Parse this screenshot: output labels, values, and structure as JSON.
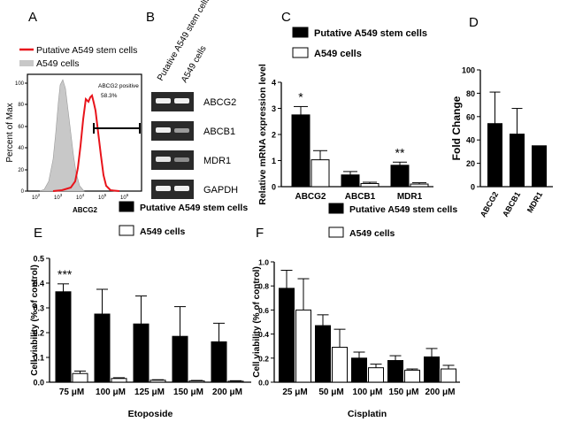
{
  "panels": {
    "A": {
      "letter": "A",
      "legend": [
        "Putative A549 stem cells",
        "A549 cells"
      ],
      "legend_colors": [
        "#e8141b",
        "#c8c8c8"
      ],
      "ylabel": "Percent of Max",
      "xlabel": "ABCG2",
      "y_ticks": [
        "0",
        "20",
        "40",
        "60",
        "80",
        "100"
      ],
      "x_ticks": [
        "10",
        "10",
        "10",
        "10",
        "10",
        "10"
      ],
      "x_tick_exponents": [
        "2",
        "3",
        "4",
        "5",
        "6",
        ""
      ],
      "gate_label": "ABCG2 positive",
      "gate_value": "58.3%"
    },
    "B": {
      "letter": "B",
      "column_labels": [
        "Putative A549 stem cells",
        "A549 cells"
      ],
      "row_labels": [
        "ABCG2",
        "ABCB1",
        "MDR1",
        "GAPDH"
      ]
    },
    "C": {
      "letter": "C"
    },
    "D": {
      "letter": "D"
    },
    "E": {
      "letter": "E"
    },
    "F": {
      "letter": "F"
    }
  },
  "chart_data": [
    {
      "panel": "C",
      "type": "bar",
      "categories": [
        "ABCG2",
        "ABCB1",
        "MDR1"
      ],
      "series": [
        {
          "name": "Putative A549 stem cells",
          "values": [
            2.75,
            0.45,
            0.82
          ],
          "errors": [
            0.32,
            0.13,
            0.12
          ],
          "color": "#000000"
        },
        {
          "name": "A549 cells",
          "values": [
            1.03,
            0.12,
            0.1
          ],
          "errors": [
            0.35,
            0.05,
            0.05
          ],
          "color": "#ffffff"
        }
      ],
      "annotations": [
        "*",
        "",
        "**"
      ],
      "ylabel": "Relative mRNA expression level",
      "ylim": [
        0,
        4
      ],
      "y_ticks": [
        0,
        1,
        2,
        3,
        4
      ]
    },
    {
      "panel": "D",
      "type": "bar",
      "categories": [
        "ABCG2",
        "ABCB1",
        "MDR1"
      ],
      "series": [
        {
          "name": "",
          "values": [
            54,
            45,
            35
          ],
          "errors": [
            27,
            22,
            0
          ],
          "color": "#000000"
        }
      ],
      "ylabel": "Fold Change",
      "ylim": [
        0,
        100
      ],
      "y_ticks": [
        0,
        20,
        40,
        60,
        80,
        100
      ]
    },
    {
      "panel": "E",
      "type": "bar",
      "categories": [
        "75 μM",
        "100 μM",
        "125 μM",
        "150 μM",
        "200 μM"
      ],
      "series": [
        {
          "name": "Putative A549 stem cells",
          "values": [
            0.365,
            0.275,
            0.235,
            0.185,
            0.163
          ],
          "errors": [
            0.032,
            0.1,
            0.113,
            0.12,
            0.075
          ],
          "color": "#000000"
        },
        {
          "name": "A549 cells",
          "values": [
            0.035,
            0.015,
            0.008,
            0.005,
            0.004
          ],
          "errors": [
            0.01,
            0.003,
            0.002,
            0.002,
            0.002
          ],
          "color": "#ffffff"
        }
      ],
      "annotations": [
        "***",
        "",
        "",
        "",
        ""
      ],
      "xlabel": "Etoposide",
      "ylabel": "Cell viability (% of control)",
      "ylim": [
        0,
        0.5
      ],
      "y_ticks": [
        0.0,
        0.1,
        0.2,
        0.3,
        0.4,
        0.5
      ]
    },
    {
      "panel": "F",
      "type": "bar",
      "categories": [
        "25 μM",
        "50 μM",
        "100 μM",
        "150 μM",
        "200 μM"
      ],
      "series": [
        {
          "name": "Putative A549 stem cells",
          "values": [
            0.78,
            0.47,
            0.2,
            0.18,
            0.21
          ],
          "errors": [
            0.15,
            0.09,
            0.05,
            0.04,
            0.07
          ],
          "color": "#000000"
        },
        {
          "name": "A549 cells",
          "values": [
            0.6,
            0.29,
            0.12,
            0.1,
            0.11
          ],
          "errors": [
            0.26,
            0.15,
            0.03,
            0.01,
            0.03
          ],
          "color": "#ffffff"
        }
      ],
      "xlabel": "Cisplatin",
      "ylabel": "Cell viability (% of control)",
      "ylim": [
        0,
        1.0
      ],
      "y_ticks": [
        0.0,
        0.2,
        0.4,
        0.6,
        0.8,
        1.0
      ]
    }
  ]
}
